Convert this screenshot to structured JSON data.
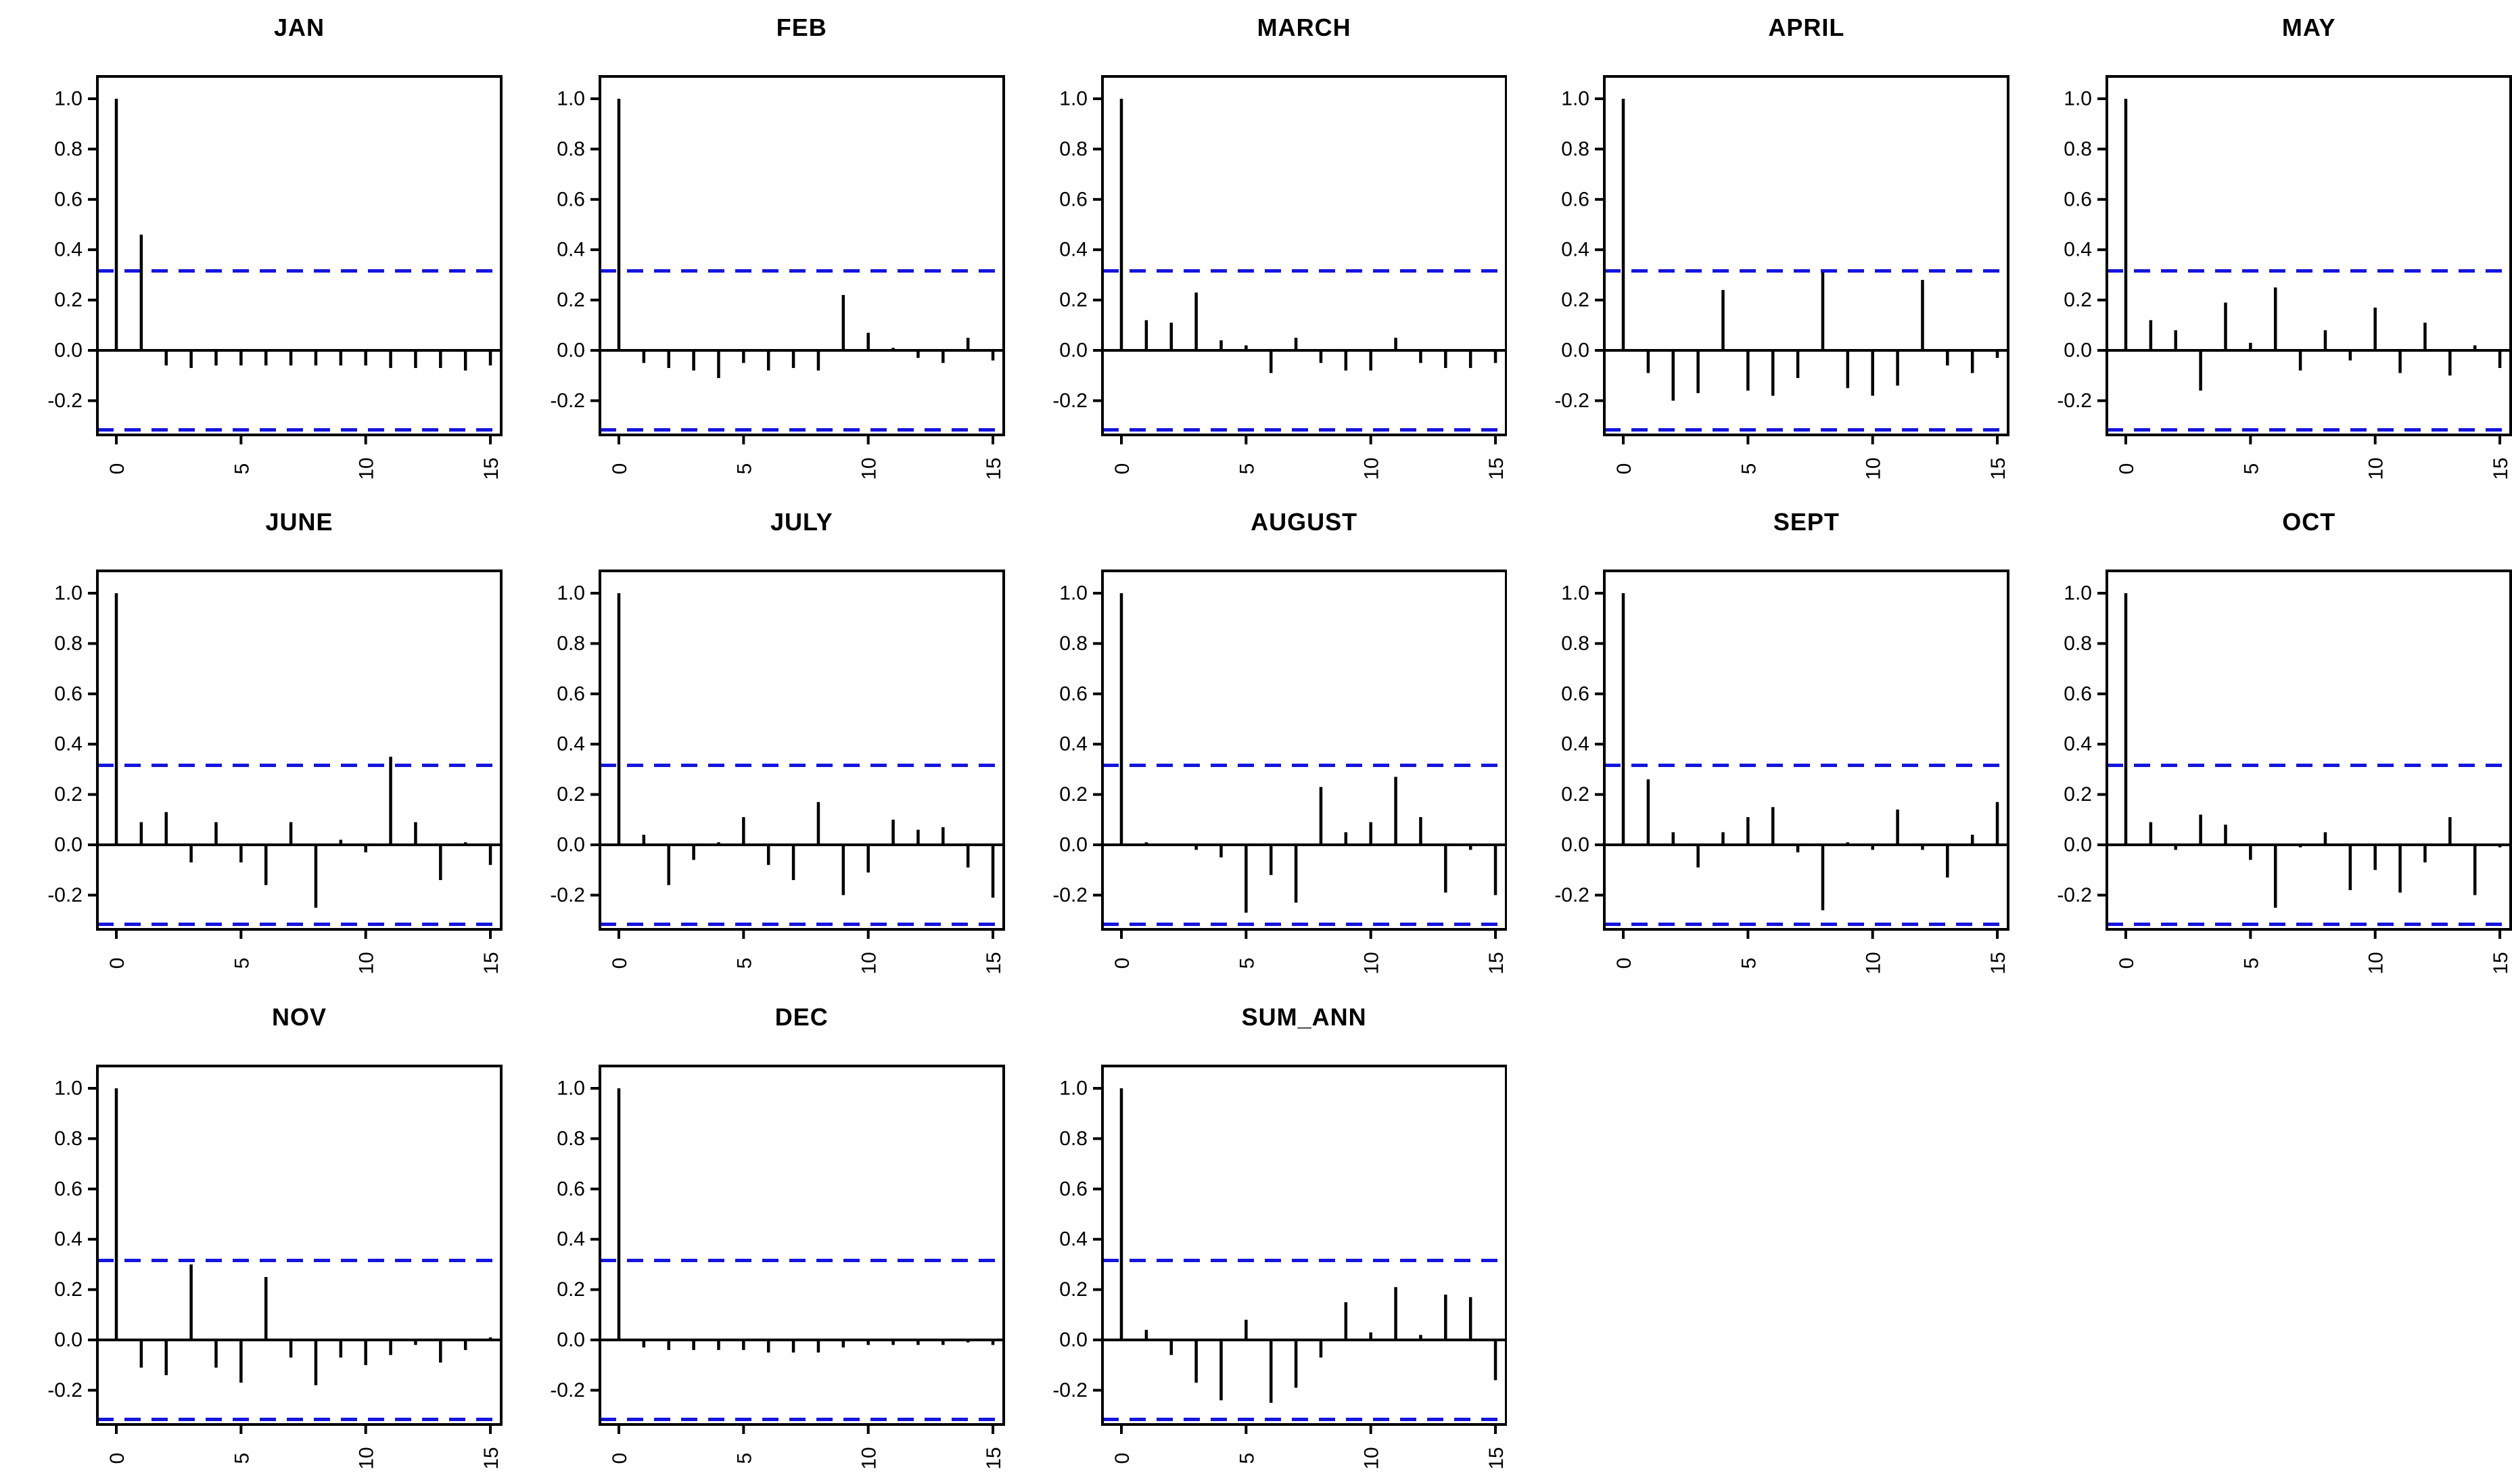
{
  "figure": {
    "background": "#ffffff",
    "bar_color": "#000000",
    "axis_color": "#000000",
    "title_color": "#000000",
    "conf_line_color": "#1515dd"
  },
  "axes": {
    "y_tick_labels": [
      "1.0",
      "0.8",
      "0.6",
      "0.4",
      "0.2",
      "0.0",
      "-0.2"
    ],
    "y_tick_values": [
      1.0,
      0.8,
      0.6,
      0.4,
      0.2,
      0.0,
      -0.2
    ],
    "x_tick_labels": [
      "0",
      "5",
      "10",
      "15"
    ],
    "x_tick_values": [
      0,
      5,
      10,
      15
    ],
    "lag_min": 0,
    "lag_max": 15,
    "conf_bound": 0.316,
    "ylim": [
      -0.34,
      1.09
    ],
    "grid": "off",
    "legend": "none"
  },
  "chart_data": [
    {
      "type": "bar",
      "title": "JAN",
      "values": [
        1.0,
        0.46,
        -0.06,
        -0.07,
        -0.06,
        -0.06,
        -0.06,
        -0.06,
        -0.06,
        -0.06,
        -0.06,
        -0.07,
        -0.07,
        -0.07,
        -0.08,
        -0.06
      ]
    },
    {
      "type": "bar",
      "title": "FEB",
      "values": [
        1.0,
        -0.05,
        -0.07,
        -0.08,
        -0.11,
        -0.05,
        -0.08,
        -0.07,
        -0.08,
        0.22,
        0.07,
        0.01,
        -0.03,
        -0.05,
        0.05,
        -0.04
      ]
    },
    {
      "type": "bar",
      "title": "MARCH",
      "values": [
        1.0,
        0.12,
        0.11,
        0.23,
        0.04,
        0.02,
        -0.09,
        0.05,
        -0.05,
        -0.08,
        -0.08,
        0.05,
        -0.05,
        -0.07,
        -0.07,
        -0.05
      ]
    },
    {
      "type": "bar",
      "title": "APRIL",
      "values": [
        1.0,
        -0.09,
        -0.2,
        -0.17,
        0.24,
        -0.16,
        -0.18,
        -0.11,
        0.31,
        -0.15,
        -0.18,
        -0.14,
        0.28,
        -0.06,
        -0.09,
        -0.03
      ]
    },
    {
      "type": "bar",
      "title": "MAY",
      "values": [
        1.0,
        0.12,
        0.08,
        -0.16,
        0.19,
        0.03,
        0.25,
        -0.08,
        0.08,
        -0.04,
        0.17,
        -0.09,
        0.11,
        -0.1,
        0.02,
        -0.07
      ]
    },
    {
      "type": "bar",
      "title": "JUNE",
      "values": [
        1.0,
        0.09,
        0.13,
        -0.07,
        0.09,
        -0.07,
        -0.16,
        0.09,
        -0.25,
        0.02,
        -0.03,
        0.35,
        0.09,
        -0.14,
        0.01,
        -0.08
      ]
    },
    {
      "type": "bar",
      "title": "JULY",
      "values": [
        1.0,
        0.04,
        -0.16,
        -0.06,
        0.01,
        0.11,
        -0.08,
        -0.14,
        0.17,
        -0.2,
        -0.11,
        0.1,
        0.06,
        0.07,
        -0.09,
        -0.21
      ]
    },
    {
      "type": "bar",
      "title": "AUGUST",
      "values": [
        1.0,
        0.01,
        0.0,
        -0.02,
        -0.05,
        -0.27,
        -0.12,
        -0.23,
        0.23,
        0.05,
        0.09,
        0.27,
        0.11,
        -0.19,
        -0.02,
        -0.2
      ]
    },
    {
      "type": "bar",
      "title": "SEPT",
      "values": [
        1.0,
        0.26,
        0.05,
        -0.09,
        0.05,
        0.11,
        0.15,
        -0.03,
        -0.26,
        0.01,
        -0.02,
        0.14,
        -0.02,
        -0.13,
        0.04,
        0.17
      ]
    },
    {
      "type": "bar",
      "title": "OCT",
      "values": [
        1.0,
        0.09,
        -0.02,
        0.12,
        0.08,
        -0.06,
        -0.25,
        -0.01,
        0.05,
        -0.18,
        -0.1,
        -0.19,
        -0.07,
        0.11,
        -0.2,
        -0.01
      ]
    },
    {
      "type": "bar",
      "title": "NOV",
      "values": [
        1.0,
        -0.11,
        -0.14,
        0.3,
        -0.11,
        -0.17,
        0.25,
        -0.07,
        -0.18,
        -0.07,
        -0.1,
        -0.06,
        -0.02,
        -0.09,
        -0.04,
        0.01
      ]
    },
    {
      "type": "bar",
      "title": "DEC",
      "values": [
        1.0,
        -0.03,
        -0.04,
        -0.04,
        -0.04,
        -0.04,
        -0.05,
        -0.05,
        -0.05,
        -0.03,
        -0.02,
        -0.02,
        -0.02,
        -0.02,
        -0.01,
        -0.02
      ]
    },
    {
      "type": "bar",
      "title": "SUM_ANN",
      "values": [
        1.0,
        0.04,
        -0.06,
        -0.17,
        -0.24,
        0.08,
        -0.25,
        -0.19,
        -0.07,
        0.15,
        0.03,
        0.21,
        0.02,
        0.18,
        0.17,
        -0.16
      ]
    }
  ]
}
